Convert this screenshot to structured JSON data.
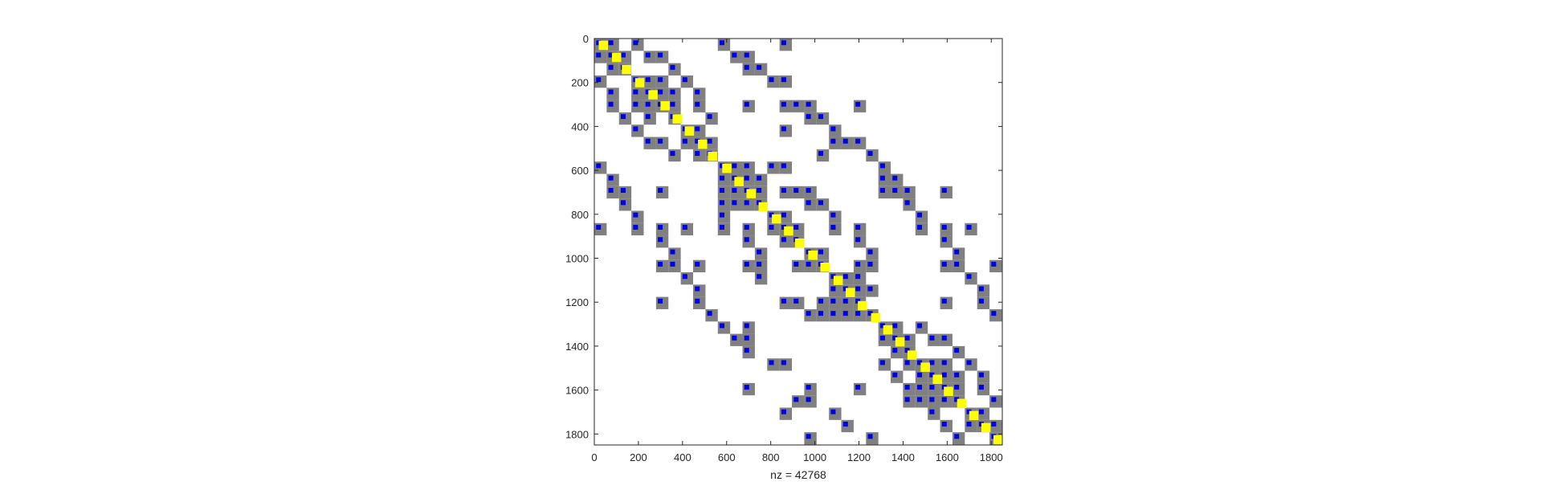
{
  "chart_data": {
    "type": "spy",
    "matrix_size": 1850,
    "xlabel": "nz = 42768",
    "xlim": [
      0,
      1850
    ],
    "ylim": [
      0,
      1850
    ],
    "y_reversed": true,
    "x_ticks": [
      0,
      200,
      400,
      600,
      800,
      1000,
      1200,
      1400,
      1600,
      1800
    ],
    "y_ticks": [
      0,
      200,
      400,
      600,
      800,
      1000,
      1200,
      1400,
      1600,
      1800
    ],
    "block_size": 56,
    "colors": {
      "gray": "#808080",
      "blue": "#0000e6",
      "yellow": "#ffff00",
      "axis": "#262626"
    },
    "gray_blocks": [
      [
        0,
        0
      ],
      [
        56,
        0
      ],
      [
        168,
        0
      ],
      [
        560,
        0
      ],
      [
        840,
        0
      ],
      [
        0,
        56
      ],
      [
        56,
        56
      ],
      [
        112,
        56
      ],
      [
        224,
        56
      ],
      [
        280,
        56
      ],
      [
        616,
        56
      ],
      [
        672,
        56
      ],
      [
        56,
        112
      ],
      [
        112,
        112
      ],
      [
        336,
        112
      ],
      [
        672,
        112
      ],
      [
        728,
        112
      ],
      [
        0,
        168
      ],
      [
        168,
        168
      ],
      [
        224,
        168
      ],
      [
        280,
        168
      ],
      [
        392,
        168
      ],
      [
        784,
        168
      ],
      [
        840,
        168
      ],
      [
        56,
        224
      ],
      [
        168,
        224
      ],
      [
        224,
        224
      ],
      [
        280,
        224
      ],
      [
        336,
        224
      ],
      [
        448,
        224
      ],
      [
        56,
        280
      ],
      [
        168,
        280
      ],
      [
        224,
        280
      ],
      [
        280,
        280
      ],
      [
        336,
        280
      ],
      [
        448,
        280
      ],
      [
        672,
        280
      ],
      [
        840,
        280
      ],
      [
        896,
        280
      ],
      [
        952,
        280
      ],
      [
        1176,
        280
      ],
      [
        112,
        336
      ],
      [
        224,
        336
      ],
      [
        336,
        336
      ],
      [
        504,
        336
      ],
      [
        952,
        336
      ],
      [
        1008,
        336
      ],
      [
        168,
        392
      ],
      [
        392,
        392
      ],
      [
        448,
        392
      ],
      [
        840,
        392
      ],
      [
        1064,
        392
      ],
      [
        224,
        448
      ],
      [
        280,
        448
      ],
      [
        392,
        448
      ],
      [
        448,
        448
      ],
      [
        504,
        448
      ],
      [
        1064,
        448
      ],
      [
        1120,
        448
      ],
      [
        1176,
        448
      ],
      [
        336,
        504
      ],
      [
        448,
        504
      ],
      [
        504,
        504
      ],
      [
        1008,
        504
      ],
      [
        1232,
        504
      ],
      [
        0,
        560
      ],
      [
        560,
        560
      ],
      [
        616,
        560
      ],
      [
        672,
        560
      ],
      [
        784,
        560
      ],
      [
        840,
        560
      ],
      [
        1288,
        560
      ],
      [
        56,
        616
      ],
      [
        560,
        616
      ],
      [
        616,
        616
      ],
      [
        672,
        616
      ],
      [
        728,
        616
      ],
      [
        1288,
        616
      ],
      [
        1344,
        616
      ],
      [
        56,
        672
      ],
      [
        112,
        672
      ],
      [
        280,
        672
      ],
      [
        560,
        672
      ],
      [
        616,
        672
      ],
      [
        672,
        672
      ],
      [
        728,
        672
      ],
      [
        840,
        672
      ],
      [
        896,
        672
      ],
      [
        952,
        672
      ],
      [
        1288,
        672
      ],
      [
        1344,
        672
      ],
      [
        1400,
        672
      ],
      [
        1568,
        672
      ],
      [
        112,
        728
      ],
      [
        560,
        728
      ],
      [
        616,
        728
      ],
      [
        672,
        728
      ],
      [
        728,
        728
      ],
      [
        952,
        728
      ],
      [
        1008,
        728
      ],
      [
        1400,
        728
      ],
      [
        168,
        784
      ],
      [
        560,
        784
      ],
      [
        784,
        784
      ],
      [
        840,
        784
      ],
      [
        1064,
        784
      ],
      [
        1456,
        784
      ],
      [
        0,
        840
      ],
      [
        168,
        840
      ],
      [
        280,
        840
      ],
      [
        392,
        840
      ],
      [
        560,
        840
      ],
      [
        672,
        840
      ],
      [
        784,
        840
      ],
      [
        840,
        840
      ],
      [
        896,
        840
      ],
      [
        1064,
        840
      ],
      [
        1176,
        840
      ],
      [
        1456,
        840
      ],
      [
        1568,
        840
      ],
      [
        1680,
        840
      ],
      [
        280,
        896
      ],
      [
        672,
        896
      ],
      [
        840,
        896
      ],
      [
        896,
        896
      ],
      [
        1176,
        896
      ],
      [
        1568,
        896
      ],
      [
        336,
        952
      ],
      [
        728,
        952
      ],
      [
        952,
        952
      ],
      [
        1008,
        952
      ],
      [
        1232,
        952
      ],
      [
        1624,
        952
      ],
      [
        280,
        1008
      ],
      [
        336,
        1008
      ],
      [
        448,
        1008
      ],
      [
        672,
        1008
      ],
      [
        728,
        1008
      ],
      [
        896,
        1008
      ],
      [
        952,
        1008
      ],
      [
        1008,
        1008
      ],
      [
        1176,
        1008
      ],
      [
        1232,
        1008
      ],
      [
        1568,
        1008
      ],
      [
        1624,
        1008
      ],
      [
        1792,
        1008
      ],
      [
        392,
        1064
      ],
      [
        728,
        1064
      ],
      [
        1064,
        1064
      ],
      [
        1120,
        1064
      ],
      [
        1176,
        1064
      ],
      [
        1680,
        1064
      ],
      [
        448,
        1120
      ],
      [
        1064,
        1120
      ],
      [
        1120,
        1120
      ],
      [
        1176,
        1120
      ],
      [
        1232,
        1120
      ],
      [
        1736,
        1120
      ],
      [
        280,
        1176
      ],
      [
        448,
        1176
      ],
      [
        840,
        1176
      ],
      [
        896,
        1176
      ],
      [
        1008,
        1176
      ],
      [
        1064,
        1176
      ],
      [
        1120,
        1176
      ],
      [
        1176,
        1176
      ],
      [
        1568,
        1176
      ],
      [
        1736,
        1176
      ],
      [
        504,
        1232
      ],
      [
        952,
        1232
      ],
      [
        1008,
        1232
      ],
      [
        1064,
        1232
      ],
      [
        1120,
        1232
      ],
      [
        1176,
        1232
      ],
      [
        1232,
        1232
      ],
      [
        1792,
        1232
      ],
      [
        560,
        1288
      ],
      [
        672,
        1288
      ],
      [
        1288,
        1288
      ],
      [
        1344,
        1288
      ],
      [
        1456,
        1288
      ],
      [
        616,
        1344
      ],
      [
        672,
        1344
      ],
      [
        1288,
        1344
      ],
      [
        1344,
        1344
      ],
      [
        1400,
        1344
      ],
      [
        1512,
        1344
      ],
      [
        1568,
        1344
      ],
      [
        672,
        1400
      ],
      [
        1344,
        1400
      ],
      [
        1400,
        1400
      ],
      [
        1624,
        1400
      ],
      [
        784,
        1456
      ],
      [
        840,
        1456
      ],
      [
        1288,
        1456
      ],
      [
        1400,
        1456
      ],
      [
        1456,
        1456
      ],
      [
        1512,
        1456
      ],
      [
        1568,
        1456
      ],
      [
        1680,
        1456
      ],
      [
        1344,
        1512
      ],
      [
        1456,
        1512
      ],
      [
        1512,
        1512
      ],
      [
        1568,
        1512
      ],
      [
        1624,
        1512
      ],
      [
        1736,
        1512
      ],
      [
        672,
        1568
      ],
      [
        952,
        1568
      ],
      [
        1176,
        1568
      ],
      [
        1400,
        1568
      ],
      [
        1456,
        1568
      ],
      [
        1512,
        1568
      ],
      [
        1568,
        1568
      ],
      [
        1624,
        1568
      ],
      [
        1736,
        1568
      ],
      [
        896,
        1624
      ],
      [
        952,
        1624
      ],
      [
        1400,
        1624
      ],
      [
        1456,
        1624
      ],
      [
        1512,
        1624
      ],
      [
        1568,
        1624
      ],
      [
        1624,
        1624
      ],
      [
        1792,
        1624
      ],
      [
        840,
        1680
      ],
      [
        1064,
        1680
      ],
      [
        1512,
        1680
      ],
      [
        1680,
        1680
      ],
      [
        1736,
        1680
      ],
      [
        1120,
        1736
      ],
      [
        1568,
        1736
      ],
      [
        1680,
        1736
      ],
      [
        1736,
        1736
      ],
      [
        1792,
        1736
      ],
      [
        952,
        1792
      ],
      [
        1232,
        1792
      ],
      [
        1624,
        1792
      ],
      [
        1792,
        1792
      ]
    ],
    "yellow_blocks": [
      [
        40,
        30
      ],
      [
        100,
        85
      ],
      [
        145,
        140
      ],
      [
        205,
        200
      ],
      [
        265,
        255
      ],
      [
        320,
        305
      ],
      [
        375,
        365
      ],
      [
        430,
        420
      ],
      [
        490,
        480
      ],
      [
        535,
        535
      ],
      [
        600,
        590
      ],
      [
        655,
        650
      ],
      [
        710,
        705
      ],
      [
        765,
        765
      ],
      [
        825,
        820
      ],
      [
        880,
        875
      ],
      [
        930,
        930
      ],
      [
        990,
        985
      ],
      [
        1045,
        1040
      ],
      [
        1105,
        1100
      ],
      [
        1160,
        1155
      ],
      [
        1215,
        1215
      ],
      [
        1275,
        1270
      ],
      [
        1330,
        1325
      ],
      [
        1385,
        1380
      ],
      [
        1440,
        1440
      ],
      [
        1500,
        1495
      ],
      [
        1555,
        1550
      ],
      [
        1605,
        1605
      ],
      [
        1665,
        1660
      ],
      [
        1720,
        1715
      ],
      [
        1775,
        1770
      ],
      [
        1830,
        1825
      ]
    ]
  }
}
